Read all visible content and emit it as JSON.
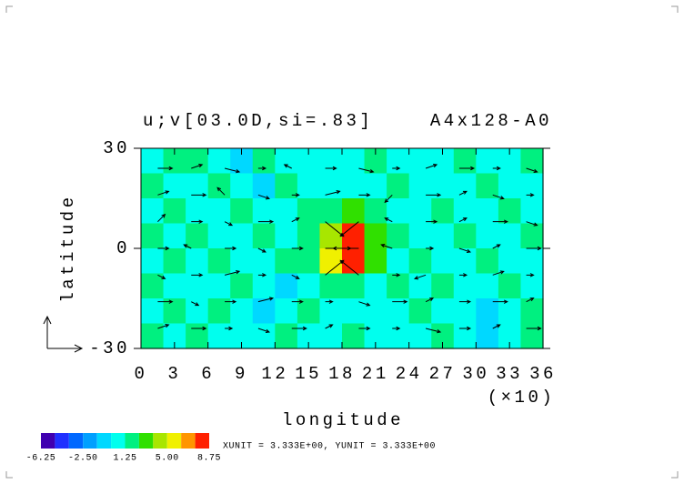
{
  "chart_data": {
    "type": "vector-contour",
    "title": "u;v[03.0D,si=.83]",
    "title_right": "A4x128-A0",
    "x_label": "longitude",
    "x_note": "(×10)",
    "y_label": "latitude",
    "xlim": [
      0,
      36
    ],
    "xticks": [
      0,
      3,
      6,
      9,
      12,
      15,
      18,
      21,
      24,
      27,
      30,
      33,
      36
    ],
    "ylim": [
      -30,
      30
    ],
    "yticks": [
      -30,
      0,
      30
    ],
    "field": {
      "values": [
        [
          0.5,
          1.8,
          1.8,
          0.5,
          -0.5,
          1.8,
          0.5,
          0.5,
          0.5,
          0.5,
          1.8,
          0.5,
          0.5,
          0.5,
          1.8,
          0.5,
          0.5,
          1.8
        ],
        [
          1.8,
          0.5,
          0.5,
          1.8,
          0.5,
          -0.5,
          1.8,
          0.5,
          0.5,
          0.5,
          0.5,
          1.8,
          0.5,
          0.5,
          0.5,
          1.8,
          0.5,
          0.5
        ],
        [
          0.5,
          1.8,
          0.5,
          0.5,
          1.8,
          0.5,
          0.5,
          1.8,
          1.8,
          2.7,
          1.8,
          0.5,
          0.5,
          1.8,
          0.5,
          0.5,
          1.8,
          0.5
        ],
        [
          1.8,
          0.5,
          1.8,
          0.5,
          0.5,
          1.8,
          0.5,
          1.8,
          4.5,
          7.5,
          2.7,
          1.8,
          0.5,
          0.5,
          1.8,
          0.5,
          0.5,
          1.8
        ],
        [
          0.5,
          1.8,
          0.5,
          1.8,
          0.5,
          0.5,
          1.8,
          1.8,
          5.5,
          8.2,
          2.7,
          0.5,
          1.8,
          0.5,
          0.5,
          1.8,
          0.5,
          0.5
        ],
        [
          1.8,
          0.5,
          0.5,
          0.5,
          1.8,
          0.5,
          -0.5,
          0.5,
          1.8,
          1.8,
          0.5,
          1.8,
          0.5,
          1.8,
          0.5,
          0.5,
          1.8,
          0.5
        ],
        [
          0.5,
          1.8,
          0.5,
          1.8,
          0.5,
          -0.5,
          0.5,
          1.8,
          0.5,
          0.5,
          0.5,
          0.5,
          1.8,
          0.5,
          0.5,
          -0.5,
          0.5,
          1.8
        ],
        [
          1.8,
          0.5,
          1.8,
          0.5,
          0.5,
          0.5,
          1.8,
          0.5,
          0.5,
          1.8,
          0.5,
          0.5,
          0.5,
          1.8,
          0.5,
          -0.5,
          0.5,
          1.8
        ]
      ]
    },
    "vectors": {
      "x": [
        1.5,
        4.5,
        7.5,
        10.5,
        13.5,
        16.5,
        19.5,
        22.5,
        25.5,
        28.5,
        31.5,
        34.5
      ],
      "y": [
        24,
        16,
        8,
        0,
        -8,
        -16,
        -24
      ],
      "u": [
        [
          2,
          1.5,
          2,
          1,
          -1,
          1.5,
          2,
          1,
          1.5,
          2,
          1,
          1.5
        ],
        [
          1.5,
          2,
          -1,
          1.5,
          1,
          2,
          1.5,
          -1,
          2,
          1,
          1.5,
          1
        ],
        [
          1,
          1.5,
          1,
          2,
          1,
          2.5,
          -2.5,
          -1,
          1.5,
          1,
          2,
          1.5
        ],
        [
          1.5,
          -1,
          1.5,
          1,
          1.5,
          3.5,
          -3.5,
          -1.5,
          1,
          1.5,
          1,
          2
        ],
        [
          1,
          1.5,
          2,
          1,
          1,
          2.5,
          -2.5,
          1,
          -1.5,
          1,
          1.5,
          1
        ],
        [
          2,
          1,
          1.5,
          2,
          1.5,
          1,
          1.5,
          2,
          1,
          1.5,
          2,
          1
        ],
        [
          1.5,
          2,
          1,
          1.5,
          2,
          1,
          1.5,
          1,
          2,
          1.5,
          1,
          2
        ]
      ],
      "v": [
        [
          0,
          0.5,
          -0.5,
          0,
          0.5,
          0,
          -0.5,
          0,
          0.5,
          0,
          0,
          -0.5
        ],
        [
          0.5,
          0,
          1,
          -0.5,
          0,
          0.5,
          0,
          -1,
          0,
          0.5,
          -0.5,
          0
        ],
        [
          1,
          0,
          -0.5,
          0,
          0.5,
          -2,
          -2,
          0.5,
          0,
          0.5,
          0,
          -0.5
        ],
        [
          0,
          0.5,
          0,
          -0.5,
          0,
          0,
          0,
          0.5,
          0,
          -0.5,
          0.5,
          0
        ],
        [
          -0.5,
          0,
          0.5,
          0,
          -0.5,
          2,
          2,
          0,
          -0.5,
          0,
          0.5,
          0
        ],
        [
          0,
          -0.5,
          0,
          0.5,
          0,
          0,
          -0.5,
          0,
          0.5,
          0,
          0,
          0.5
        ],
        [
          0.5,
          0,
          0,
          -0.5,
          0,
          0.5,
          0,
          0,
          -0.5,
          0,
          0.5,
          0
        ]
      ],
      "color": "#000000"
    },
    "colorbar": {
      "levels": [
        -6.25,
        -5,
        -3.75,
        -2.5,
        -1.25,
        0,
        1.25,
        2.5,
        3.75,
        5,
        6.25,
        7.5,
        8.75
      ],
      "colors": [
        "#4000b0",
        "#2030ff",
        "#0068ff",
        "#00a0ff",
        "#00d8ff",
        "#00ffee",
        "#00f080",
        "#30e000",
        "#a8e600",
        "#f0f000",
        "#ff9600",
        "#ff2000"
      ],
      "ticks": [
        -6.25,
        {
          "value": -2.5,
          "label": "-2.50"
        },
        1.25,
        {
          "value": 5,
          "label": "5.00"
        },
        8.75
      ]
    },
    "unit_note": "XUNIT = 3.333E+00, YUNIT = 3.333E+00"
  }
}
